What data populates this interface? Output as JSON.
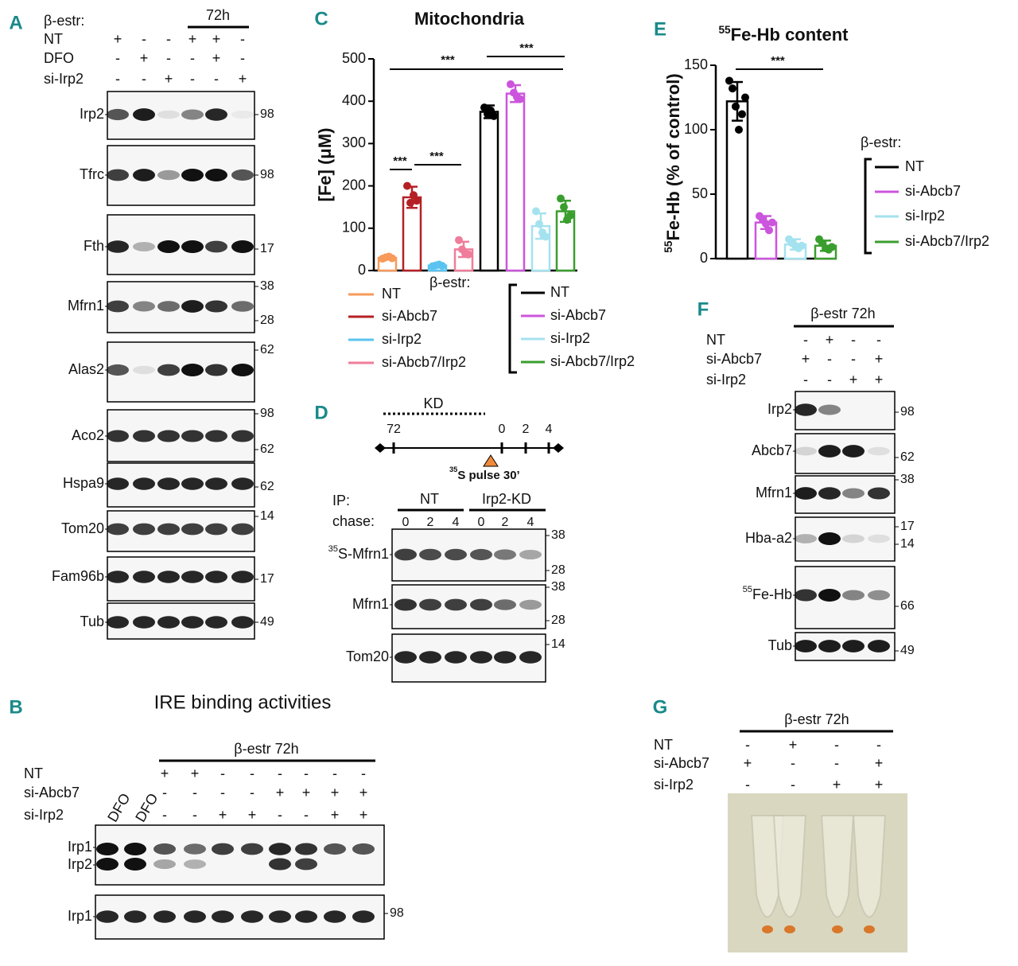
{
  "letters": [
    "A",
    "B",
    "C",
    "D",
    "E",
    "F",
    "G"
  ],
  "A": {
    "header": "β-estr:",
    "group": "72h",
    "rows": [
      {
        "name": "NT",
        "signs": [
          "+",
          "-",
          "-",
          "+",
          "+",
          "-"
        ]
      },
      {
        "name": "DFO",
        "signs": [
          "-",
          "+",
          "-",
          "-",
          "+",
          "-"
        ]
      },
      {
        "name": "si-Irp2",
        "signs": [
          "-",
          "-",
          "+",
          "-",
          "-",
          "+"
        ]
      }
    ],
    "blots": [
      {
        "name": "Irp2",
        "mw": [
          98
        ]
      },
      {
        "name": "Tfrc",
        "mw": [
          98
        ]
      },
      {
        "name": "Fth",
        "mw": [
          17
        ]
      },
      {
        "name": "Mfrn1",
        "mw": [
          38,
          28
        ]
      },
      {
        "name": "Alas2",
        "mw": [
          62
        ]
      },
      {
        "name": "Aco2",
        "mw": [
          98,
          62
        ]
      },
      {
        "name": "Hspa9",
        "mw": [
          62
        ]
      },
      {
        "name": "Tom20",
        "mw": [
          14
        ]
      },
      {
        "name": "Fam96b",
        "mw": [
          17
        ]
      },
      {
        "name": "Tub",
        "mw": [
          49
        ]
      }
    ]
  },
  "B": {
    "title": "IRE binding activities",
    "group": "β-estr 72h",
    "lane_labels": [
      "DFO",
      "DFO"
    ],
    "rows": [
      {
        "name": "NT",
        "signs": [
          "+",
          "+",
          "-",
          "-",
          "-",
          "-",
          "-",
          "-"
        ]
      },
      {
        "name": "si-Abcb7",
        "signs": [
          "-",
          "-",
          "-",
          "-",
          "+",
          "+",
          "+",
          "+"
        ]
      },
      {
        "name": "si-Irp2",
        "signs": [
          "-",
          "-",
          "+",
          "+",
          "-",
          "-",
          "+",
          "+"
        ]
      }
    ],
    "blots": [
      {
        "names": [
          "Irp1",
          "Irp2"
        ]
      },
      {
        "names": [
          "Irp1"
        ],
        "mw": [
          98
        ]
      }
    ]
  },
  "C": {
    "title": "Mitochondria",
    "y_label": "[Fe] (μM)",
    "ylim": [
      0,
      500
    ],
    "yticks": [
      0,
      100,
      200,
      300,
      400,
      500
    ],
    "significance": [
      "***",
      "***",
      "***",
      "***"
    ],
    "groups": [
      {
        "series": [
          {
            "name": "NT",
            "color": "#f79a5a",
            "value": 30,
            "error": 3,
            "points": [
              28,
              31,
              33,
              29
            ]
          },
          {
            "name": "si-Abcb7",
            "color": "#b52025",
            "value": 173,
            "error": 25,
            "points": [
              200,
              160,
              178,
              165
            ]
          },
          {
            "name": "si-Irp2",
            "color": "#5bc3ef",
            "value": 12,
            "error": 2,
            "points": [
              10,
              12,
              14,
              11
            ]
          },
          {
            "name": "si-Abcb7/Irp2",
            "color": "#ef7d9a",
            "value": 50,
            "error": 18,
            "points": [
              72,
              50,
              40,
              38
            ]
          }
        ]
      },
      {
        "label": "β-estr:",
        "series": [
          {
            "name": "NT",
            "color": "#000000",
            "value": 375,
            "error": 15,
            "points": [
              385,
              370,
              378,
              365
            ]
          },
          {
            "name": "si-Abcb7",
            "color": "#cc55dd",
            "value": 418,
            "error": 20,
            "points": [
              440,
              420,
              410,
              405
            ]
          },
          {
            "name": "si-Irp2",
            "color": "#a5e2ef",
            "value": 105,
            "error": 30,
            "points": [
              140,
              110,
              90,
              80
            ]
          },
          {
            "name": "si-Abcb7/Irp2",
            "color": "#3a9e2e",
            "value": 140,
            "error": 25,
            "points": [
              170,
              150,
              120,
              130
            ]
          }
        ]
      }
    ]
  },
  "D": {
    "kd": "KD",
    "timeline": [
      72,
      0,
      2,
      4
    ],
    "pulse": {
      "sup": "35",
      "text": "S pulse 30’"
    },
    "ip": "IP:",
    "chase": "chase:",
    "groups": [
      "NT",
      "Irp2-KD"
    ],
    "chase_times": [
      0,
      2,
      4,
      0,
      2,
      4
    ],
    "blots": [
      {
        "name": {
          "sup": "35",
          "text": "S-Mfrn1"
        },
        "mw": [
          38,
          28
        ]
      },
      {
        "name": "Mfrn1",
        "mw": [
          38,
          28
        ]
      },
      {
        "name": "Tom20",
        "mw": [
          14
        ]
      }
    ]
  },
  "E": {
    "title": {
      "sup": "55",
      "text": "Fe-Hb content"
    },
    "y_label": {
      "sup": "55",
      "text": "Fe-Hb (% of control)"
    },
    "ylim": [
      0,
      150
    ],
    "yticks": [
      0,
      50,
      100,
      150
    ],
    "significance": [
      "***"
    ],
    "legend_label": "β-estr:",
    "series": [
      {
        "name": "NT",
        "color": "#000000",
        "value": 122,
        "error": 15,
        "points": [
          138,
          132,
          118,
          100,
          112,
          125
        ]
      },
      {
        "name": "si-Abcb7",
        "color": "#cc55dd",
        "value": 28,
        "error": 5,
        "points": [
          33,
          30,
          27,
          22,
          28
        ]
      },
      {
        "name": "si-Irp2",
        "color": "#a5e2ef",
        "value": 11,
        "error": 4,
        "points": [
          15,
          12,
          10,
          8,
          10
        ]
      },
      {
        "name": "si-Abcb7/Irp2",
        "color": "#3a9e2e",
        "value": 10,
        "error": 4,
        "points": [
          15,
          12,
          8,
          7,
          9
        ]
      }
    ]
  },
  "F": {
    "group": "β-estr 72h",
    "rows": [
      {
        "name": "NT",
        "signs": [
          "-",
          "+",
          "-",
          "-"
        ]
      },
      {
        "name": "si-Abcb7",
        "signs": [
          "+",
          "-",
          "-",
          "+"
        ]
      },
      {
        "name": "si-Irp2",
        "signs": [
          "-",
          "-",
          "+",
          "+"
        ]
      }
    ],
    "blots": [
      {
        "name": "Irp2",
        "mw": [
          98
        ]
      },
      {
        "name": "Abcb7",
        "mw": [
          62
        ]
      },
      {
        "name": "Mfrn1",
        "mw": [
          38
        ]
      },
      {
        "name": "Hba-a2",
        "mw": [
          17,
          14
        ]
      },
      {
        "name": {
          "sup": "55",
          "text": "Fe-Hb"
        },
        "mw": [
          66
        ]
      },
      {
        "name": "Tub",
        "mw": [
          49
        ]
      }
    ]
  },
  "G": {
    "group": "β-estr 72h",
    "rows": [
      {
        "name": "NT",
        "signs": [
          "-",
          "+",
          "-",
          "-"
        ]
      },
      {
        "name": "si-Abcb7",
        "signs": [
          "+",
          "-",
          "-",
          "+"
        ]
      },
      {
        "name": "si-Irp2",
        "signs": [
          "-",
          "-",
          "+",
          "+"
        ]
      }
    ]
  }
}
